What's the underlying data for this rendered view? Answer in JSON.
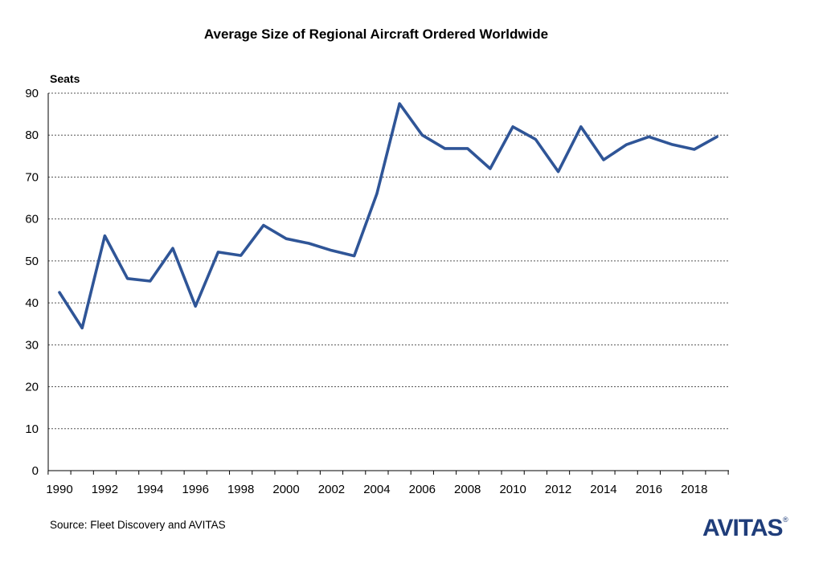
{
  "chart_data": {
    "type": "line",
    "title": "Average Size of Regional Aircraft Ordered Worldwide",
    "ylabel": "Seats",
    "xlabel": "",
    "ylim": [
      0,
      90
    ],
    "yticks": [
      0,
      10,
      20,
      30,
      40,
      50,
      60,
      70,
      80,
      90
    ],
    "xlim": [
      1990,
      2019
    ],
    "xtick_labels": [
      "1990",
      "1992",
      "1994",
      "1996",
      "1998",
      "2000",
      "2002",
      "2004",
      "2006",
      "2008",
      "2010",
      "2012",
      "2014",
      "2016",
      "2018"
    ],
    "grid": true,
    "x": [
      1990,
      1991,
      1992,
      1993,
      1994,
      1995,
      1996,
      1997,
      1998,
      1999,
      2000,
      2001,
      2002,
      2003,
      2004,
      2005,
      2006,
      2007,
      2008,
      2009,
      2010,
      2011,
      2012,
      2013,
      2014,
      2015,
      2016,
      2017,
      2018,
      2019
    ],
    "series": [
      {
        "values": [
          42.5,
          34,
          56,
          45.8,
          45.2,
          53,
          39.2,
          52.1,
          51.3,
          58.5,
          55.3,
          54.2,
          52.5,
          51.2,
          66,
          87.5,
          80,
          76.8,
          76.8,
          72,
          82,
          79,
          71.3,
          82,
          74.1,
          77.7,
          79.6,
          77.8,
          76.6,
          79.6
        ],
        "color": "#2F5597"
      }
    ],
    "source": "Source: Fleet Discovery and AVITAS"
  },
  "logo": {
    "text": "AVITAS",
    "registered_mark": "®",
    "color": "#1F3D7A"
  }
}
